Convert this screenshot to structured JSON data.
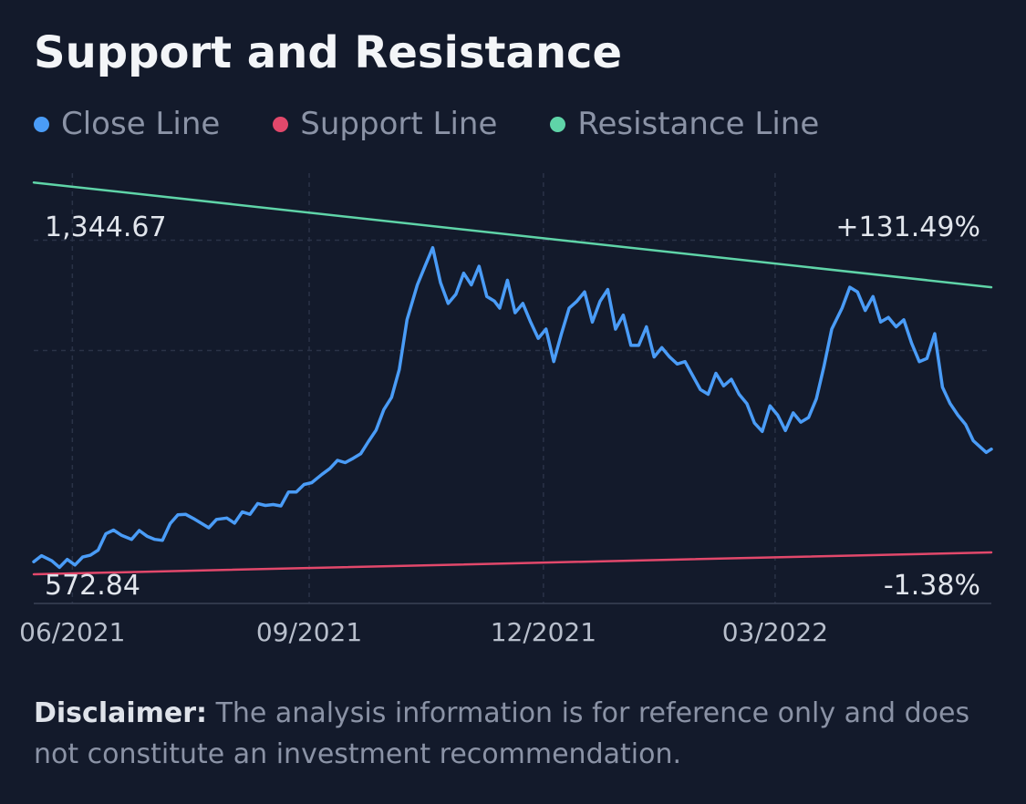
{
  "header": {
    "title": "Support and Resistance"
  },
  "legend": [
    {
      "label": "Close Line",
      "color": "#4a9cf7"
    },
    {
      "label": "Support Line",
      "color": "#e2486b"
    },
    {
      "label": "Resistance Line",
      "color": "#5fd4a8"
    }
  ],
  "chart_data": {
    "type": "line",
    "title": "Support and Resistance",
    "x_tick_labels": [
      "06/2021",
      "09/2021",
      "12/2021",
      "03/2022"
    ],
    "price_labels": {
      "max": "1,344.67",
      "min": "572.84"
    },
    "percent_labels": {
      "max": "+131.49%",
      "min": "-1.38%"
    },
    "ylim": [
      572.84,
      1344.67
    ],
    "y_gridlines": [
      1281,
      1044
    ],
    "grid": true,
    "legend_position": "top-left",
    "x_start": "2021-05-17",
    "x_end": "2022-05-24",
    "series": [
      {
        "name": "Close Line",
        "color": "#4a9cf7",
        "x": [
          "2021-05-17",
          "2021-05-20",
          "2021-05-24",
          "2021-05-27",
          "2021-05-30",
          "2021-06-02",
          "2021-06-05",
          "2021-06-08",
          "2021-06-11",
          "2021-06-14",
          "2021-06-17",
          "2021-06-20",
          "2021-06-24",
          "2021-06-27",
          "2021-06-30",
          "2021-07-03",
          "2021-07-06",
          "2021-07-09",
          "2021-07-12",
          "2021-07-15",
          "2021-07-18",
          "2021-07-21",
          "2021-07-24",
          "2021-07-27",
          "2021-07-31",
          "2021-08-03",
          "2021-08-06",
          "2021-08-09",
          "2021-08-12",
          "2021-08-15",
          "2021-08-18",
          "2021-08-21",
          "2021-08-24",
          "2021-08-27",
          "2021-08-30",
          "2021-09-02",
          "2021-09-06",
          "2021-09-09",
          "2021-09-12",
          "2021-09-15",
          "2021-09-18",
          "2021-09-21",
          "2021-09-24",
          "2021-09-27",
          "2021-09-30",
          "2021-10-03",
          "2021-10-06",
          "2021-10-09",
          "2021-10-13",
          "2021-10-16",
          "2021-10-19",
          "2021-10-22",
          "2021-10-25",
          "2021-10-28",
          "2021-10-31",
          "2021-11-03",
          "2021-11-06",
          "2021-11-09",
          "2021-11-12",
          "2021-11-14",
          "2021-11-17",
          "2021-11-20",
          "2021-11-23",
          "2021-11-26",
          "2021-11-29",
          "2021-12-02",
          "2021-12-05",
          "2021-12-08",
          "2021-12-11",
          "2021-12-14",
          "2021-12-17",
          "2021-12-20",
          "2021-12-23",
          "2021-12-26",
          "2021-12-29",
          "2022-01-01",
          "2022-01-04",
          "2022-01-07",
          "2022-01-10",
          "2022-01-13",
          "2022-01-16",
          "2022-01-19",
          "2022-01-22",
          "2022-01-25",
          "2022-01-28",
          "2022-01-31",
          "2022-02-03",
          "2022-02-06",
          "2022-02-09",
          "2022-02-12",
          "2022-02-15",
          "2022-02-18",
          "2022-02-21",
          "2022-02-24",
          "2022-02-27",
          "2022-03-02",
          "2022-03-05",
          "2022-03-08",
          "2022-03-11",
          "2022-03-14",
          "2022-03-17",
          "2022-03-20",
          "2022-03-23",
          "2022-03-27",
          "2022-03-30",
          "2022-04-02",
          "2022-04-05",
          "2022-04-08",
          "2022-04-11",
          "2022-04-14",
          "2022-04-17",
          "2022-04-20",
          "2022-04-23",
          "2022-04-26",
          "2022-04-29",
          "2022-05-02",
          "2022-05-05",
          "2022-05-08",
          "2022-05-11",
          "2022-05-14",
          "2022-05-17",
          "2022-05-20",
          "2022-05-22",
          "2022-05-24"
        ],
        "values": [
          590,
          603,
          592,
          578,
          595,
          583,
          600,
          604,
          615,
          650,
          658,
          647,
          638,
          657,
          645,
          638,
          636,
          672,
          691,
          692,
          683,
          673,
          663,
          681,
          684,
          673,
          697,
          692,
          715,
          711,
          713,
          710,
          740,
          740,
          756,
          760,
          778,
          790,
          808,
          803,
          812,
          822,
          848,
          873,
          917,
          943,
          1003,
          1110,
          1185,
          1225,
          1265,
          1190,
          1145,
          1165,
          1210,
          1185,
          1225,
          1160,
          1150,
          1135,
          1195,
          1125,
          1145,
          1105,
          1070,
          1090,
          1020,
          1080,
          1135,
          1150,
          1170,
          1105,
          1150,
          1175,
          1090,
          1120,
          1055,
          1055,
          1095,
          1030,
          1050,
          1030,
          1015,
          1020,
          990,
          960,
          950,
          995,
          968,
          982,
          950,
          930,
          888,
          870,
          925,
          905,
          872,
          910,
          890,
          900,
          940,
          1010,
          1090,
          1135,
          1180,
          1170,
          1130,
          1160,
          1105,
          1115,
          1095,
          1110,
          1060,
          1020,
          1027,
          1080,
          965,
          930,
          905,
          885,
          850,
          835,
          825,
          832
        ]
      },
      {
        "name": "Support Line",
        "color": "#e2486b",
        "x": [
          "2021-05-17",
          "2022-05-24"
        ],
        "values": [
          563,
          610
        ]
      },
      {
        "name": "Resistance Line",
        "color": "#5fd4a8",
        "x": [
          "2021-05-17",
          "2022-05-24"
        ],
        "values": [
          1405,
          1180
        ]
      }
    ]
  },
  "disclaimer": {
    "label": "Disclaimer:",
    "text": " The analysis information is for reference only and does not constitute an investment recommendation."
  }
}
